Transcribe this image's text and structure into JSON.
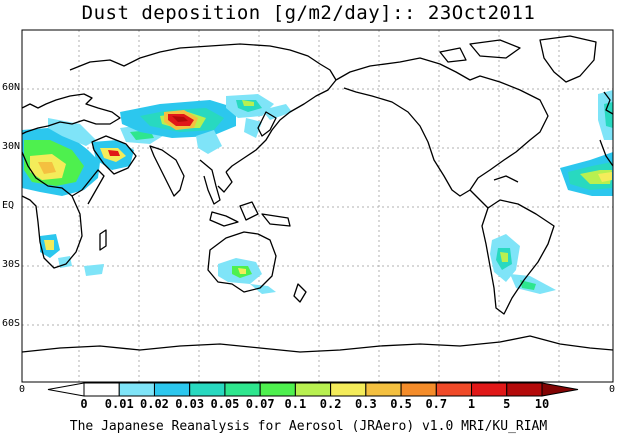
{
  "title": "Dust deposition [g/m2/day]:: 23Oct2011",
  "lat_labels": [
    "60N",
    "30N",
    "EQ",
    "30S",
    "60S"
  ],
  "frame_labels": {
    "bottom_left": "0",
    "bottom_right": "0"
  },
  "colorbar": {
    "labels": [
      "0",
      "0.01",
      "0.02",
      "0.03",
      "0.05",
      "0.07",
      "0.1",
      "0.2",
      "0.3",
      "0.5",
      "0.7",
      "1",
      "5",
      "10"
    ],
    "colors": [
      "#ffffff",
      "#ffffff",
      "#7fe4f8",
      "#2cc7ee",
      "#28d9c0",
      "#2ee68e",
      "#4ef04e",
      "#b8f050",
      "#f4ec5a",
      "#f4c040",
      "#f48c2a",
      "#f04a28",
      "#e01818",
      "#b40a0a",
      "#820404"
    ]
  },
  "credit": "The Japanese Reanalysis for Aerosol (JRAero) v1.0 MRI/KU_RIAM"
}
